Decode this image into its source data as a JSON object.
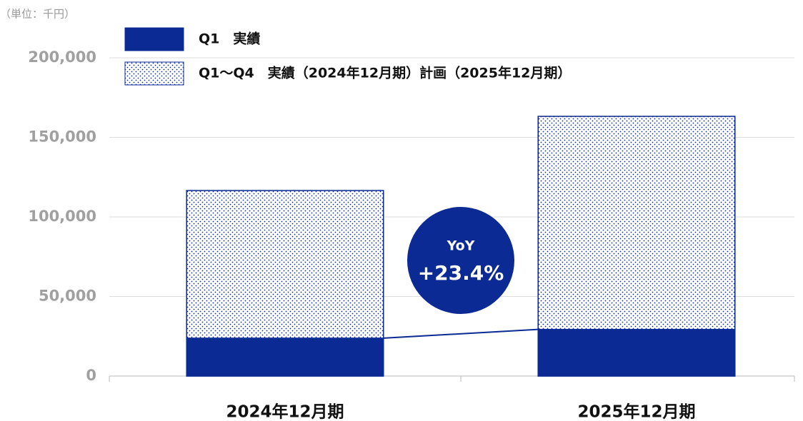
{
  "chart_data": {
    "type": "bar",
    "unit_label": "（単位：千円）",
    "categories": [
      "2024年12月期",
      "2025年12月期"
    ],
    "series": [
      {
        "name": "Q1〜Q4　実績（2024年12月期）計画（2025年12月期）",
        "color": "#0b2a94",
        "pattern": "dots",
        "values": [
          116600,
          163200
        ]
      },
      {
        "name": "Q1　実績",
        "color": "#0b2a94",
        "values": [
          23800,
          29300
        ]
      }
    ],
    "overlap": true,
    "ylim": [
      0,
      200000
    ],
    "yticks": [
      0,
      {
        "value": 50000,
        "label": "50,000"
      },
      {
        "value": 100000,
        "label": "100,000"
      },
      {
        "value": 150000,
        "label": "150,000"
      },
      {
        "value": 200000,
        "label": "200,000"
      }
    ],
    "grid": true,
    "annotation": {
      "title": "YoY",
      "text": "+23.4%",
      "color": "#0b2a94"
    }
  }
}
